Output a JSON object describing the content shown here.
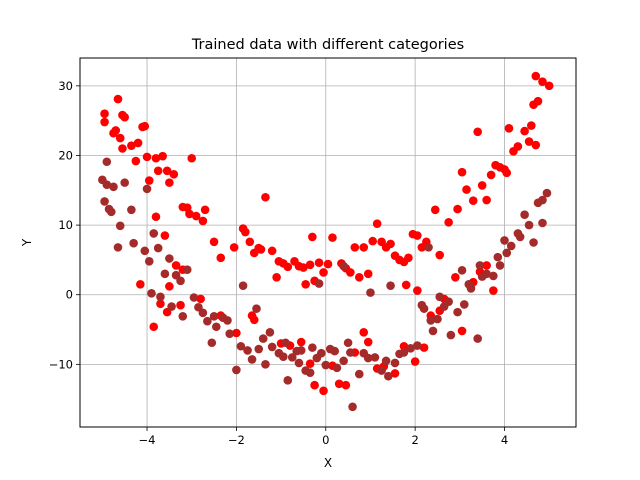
{
  "chart_data": {
    "type": "scatter",
    "title": "Trained data with different categories",
    "xlabel": "X",
    "ylabel": "Y",
    "xlim": [
      -5.5,
      5.6
    ],
    "ylim": [
      -19,
      34
    ],
    "x_ticks": [
      -4,
      -2,
      0,
      2,
      4
    ],
    "y_ticks": [
      -10,
      0,
      10,
      20,
      30
    ],
    "x_tick_labels": [
      "−4",
      "−2",
      "0",
      "2",
      "4"
    ],
    "y_tick_labels": [
      "−10",
      "0",
      "10",
      "20",
      "30"
    ],
    "grid": true,
    "series": [
      {
        "color": "#ff0000",
        "points": [
          [
            -4.95,
            26.0
          ],
          [
            -4.95,
            24.8
          ],
          [
            -4.75,
            23.2
          ],
          [
            -4.7,
            23.6
          ],
          [
            -4.65,
            28.1
          ],
          [
            -4.55,
            25.8
          ],
          [
            -4.5,
            25.5
          ],
          [
            -4.6,
            22.5
          ],
          [
            -4.55,
            21.0
          ],
          [
            -4.35,
            21.4
          ],
          [
            -4.2,
            21.8
          ],
          [
            -4.25,
            19.2
          ],
          [
            -4.1,
            24.1
          ],
          [
            -4.05,
            24.2
          ],
          [
            -4.0,
            19.8
          ],
          [
            -3.95,
            16.4
          ],
          [
            -3.8,
            19.6
          ],
          [
            -3.75,
            17.8
          ],
          [
            -3.65,
            19.9
          ],
          [
            -3.55,
            17.8
          ],
          [
            -3.5,
            16.1
          ],
          [
            -3.4,
            17.3
          ],
          [
            -3.2,
            12.6
          ],
          [
            -3.1,
            12.5
          ],
          [
            -3.0,
            19.6
          ],
          [
            -3.05,
            11.6
          ],
          [
            -2.9,
            11.3
          ],
          [
            -2.75,
            10.6
          ],
          [
            -2.7,
            12.2
          ],
          [
            -2.5,
            7.6
          ],
          [
            -2.35,
            5.3
          ],
          [
            -2.05,
            6.8
          ],
          [
            -1.85,
            9.5
          ],
          [
            -1.8,
            9.0
          ],
          [
            -1.7,
            7.6
          ],
          [
            -1.6,
            6.0
          ],
          [
            -1.5,
            6.7
          ],
          [
            -1.45,
            6.5
          ],
          [
            -1.35,
            14.0
          ],
          [
            -1.2,
            6.3
          ],
          [
            -1.05,
            4.8
          ],
          [
            -0.95,
            4.5
          ],
          [
            -0.85,
            4.0
          ],
          [
            -0.7,
            4.8
          ],
          [
            -0.6,
            4.1
          ],
          [
            -0.5,
            3.9
          ],
          [
            -0.35,
            4.3
          ],
          [
            -0.25,
            2.0
          ],
          [
            -0.15,
            4.6
          ],
          [
            -0.05,
            3.2
          ],
          [
            0.05,
            4.4
          ],
          [
            -0.3,
            8.3
          ],
          [
            0.15,
            8.2
          ],
          [
            0.35,
            4.5
          ],
          [
            0.45,
            3.8
          ],
          [
            0.55,
            3.2
          ],
          [
            0.65,
            6.8
          ],
          [
            0.75,
            2.5
          ],
          [
            0.85,
            6.8
          ],
          [
            0.95,
            3.0
          ],
          [
            1.05,
            7.7
          ],
          [
            1.15,
            10.2
          ],
          [
            1.25,
            7.6
          ],
          [
            1.35,
            6.8
          ],
          [
            1.45,
            7.3
          ],
          [
            1.55,
            5.6
          ],
          [
            1.65,
            5.0
          ],
          [
            1.75,
            4.7
          ],
          [
            1.85,
            5.3
          ],
          [
            1.95,
            8.7
          ],
          [
            2.05,
            8.5
          ],
          [
            2.15,
            6.8
          ],
          [
            2.25,
            7.6
          ],
          [
            2.45,
            12.2
          ],
          [
            2.55,
            5.7
          ],
          [
            2.75,
            10.4
          ],
          [
            2.95,
            12.3
          ],
          [
            3.05,
            17.6
          ],
          [
            3.15,
            15.1
          ],
          [
            3.3,
            13.5
          ],
          [
            3.4,
            23.4
          ],
          [
            3.5,
            15.7
          ],
          [
            3.6,
            13.6
          ],
          [
            3.7,
            17.2
          ],
          [
            3.8,
            18.6
          ],
          [
            3.9,
            18.3
          ],
          [
            4.0,
            18.0
          ],
          [
            4.05,
            17.5
          ],
          [
            4.1,
            23.9
          ],
          [
            4.2,
            20.6
          ],
          [
            4.3,
            21.3
          ],
          [
            4.45,
            23.5
          ],
          [
            4.55,
            22.0
          ],
          [
            4.6,
            24.3
          ],
          [
            4.65,
            27.3
          ],
          [
            4.7,
            31.4
          ],
          [
            4.75,
            27.8
          ],
          [
            4.85,
            30.6
          ],
          [
            5.0,
            30.0
          ],
          [
            4.7,
            21.5
          ],
          [
            -3.8,
            11.2
          ],
          [
            -3.6,
            8.5
          ],
          [
            -3.35,
            4.2
          ],
          [
            -3.2,
            3.6
          ],
          [
            -3.5,
            1.2
          ],
          [
            -3.7,
            -1.3
          ],
          [
            -3.55,
            -2.5
          ],
          [
            -3.25,
            -1.5
          ],
          [
            -3.85,
            -4.6
          ],
          [
            -2.8,
            -0.6
          ],
          [
            -2.35,
            -3.0
          ],
          [
            -2.0,
            -5.5
          ],
          [
            -1.6,
            -3.6
          ],
          [
            -1.0,
            -7.0
          ],
          [
            -0.8,
            -7.3
          ],
          [
            -0.55,
            -6.8
          ],
          [
            -0.35,
            -9.9
          ],
          [
            -0.25,
            -13.0
          ],
          [
            -0.05,
            -13.8
          ],
          [
            0.15,
            -10.2
          ],
          [
            0.3,
            -12.8
          ],
          [
            0.45,
            -13.0
          ],
          [
            0.65,
            -8.3
          ],
          [
            0.85,
            -5.4
          ],
          [
            0.95,
            -6.8
          ],
          [
            1.15,
            -10.6
          ],
          [
            1.3,
            -10.3
          ],
          [
            1.55,
            -11.3
          ],
          [
            1.75,
            -7.4
          ],
          [
            2.0,
            -9.6
          ],
          [
            2.2,
            -7.6
          ],
          [
            2.35,
            -3.0
          ],
          [
            2.55,
            -2.3
          ],
          [
            2.65,
            -0.6
          ],
          [
            2.9,
            2.5
          ],
          [
            3.05,
            -5.2
          ],
          [
            3.3,
            1.8
          ],
          [
            3.45,
            3.3
          ],
          [
            3.6,
            4.2
          ],
          [
            3.75,
            0.6
          ],
          [
            -4.15,
            1.5
          ],
          [
            -1.65,
            -3.0
          ],
          [
            -1.1,
            2.5
          ],
          [
            -0.45,
            1.5
          ],
          [
            1.8,
            1.4
          ],
          [
            2.05,
            0.6
          ]
        ]
      },
      {
        "color": "#a52a2a",
        "points": [
          [
            -5.0,
            16.5
          ],
          [
            -4.9,
            19.1
          ],
          [
            -4.9,
            15.8
          ],
          [
            -4.95,
            13.4
          ],
          [
            -4.85,
            12.3
          ],
          [
            -4.8,
            11.9
          ],
          [
            -4.75,
            15.5
          ],
          [
            -4.6,
            9.9
          ],
          [
            -4.65,
            6.8
          ],
          [
            -4.5,
            16.1
          ],
          [
            -4.35,
            12.2
          ],
          [
            -4.05,
            6.3
          ],
          [
            -4.0,
            15.2
          ],
          [
            -3.9,
            0.2
          ],
          [
            -3.75,
            6.7
          ],
          [
            -3.85,
            8.8
          ],
          [
            -3.6,
            3.0
          ],
          [
            -3.5,
            5.2
          ],
          [
            -3.35,
            2.8
          ],
          [
            -3.25,
            2.0
          ],
          [
            -3.1,
            3.6
          ],
          [
            -2.95,
            -0.4
          ],
          [
            -2.85,
            -1.8
          ],
          [
            -2.75,
            -2.6
          ],
          [
            -2.65,
            -3.8
          ],
          [
            -2.5,
            -3.1
          ],
          [
            -2.45,
            -4.6
          ],
          [
            -2.3,
            -3.3
          ],
          [
            -2.15,
            -5.6
          ],
          [
            -2.0,
            -10.8
          ],
          [
            -1.9,
            -7.4
          ],
          [
            -1.75,
            -8.0
          ],
          [
            -1.65,
            -9.3
          ],
          [
            -1.5,
            -7.8
          ],
          [
            -1.35,
            -10.0
          ],
          [
            -1.2,
            -7.5
          ],
          [
            -1.05,
            -8.4
          ],
          [
            -0.95,
            -8.9
          ],
          [
            -0.85,
            -12.3
          ],
          [
            -0.75,
            -9.0
          ],
          [
            -0.65,
            -8.1
          ],
          [
            -0.55,
            -8.0
          ],
          [
            -0.45,
            -10.9
          ],
          [
            -0.3,
            -7.6
          ],
          [
            -0.2,
            -9.1
          ],
          [
            -0.1,
            -8.4
          ],
          [
            0.0,
            -10.1
          ],
          [
            0.1,
            -7.8
          ],
          [
            0.25,
            -10.5
          ],
          [
            0.4,
            -9.5
          ],
          [
            0.55,
            -8.3
          ],
          [
            0.6,
            -16.1
          ],
          [
            0.75,
            -11.4
          ],
          [
            0.95,
            -9.1
          ],
          [
            1.1,
            -9.0
          ],
          [
            1.25,
            -10.9
          ],
          [
            1.4,
            -11.7
          ],
          [
            1.55,
            -9.8
          ],
          [
            1.75,
            -8.3
          ],
          [
            1.9,
            -7.7
          ],
          [
            2.05,
            -7.3
          ],
          [
            2.2,
            -2.0
          ],
          [
            2.35,
            -3.7
          ],
          [
            2.5,
            -3.5
          ],
          [
            2.65,
            -1.7
          ],
          [
            2.8,
            -5.8
          ],
          [
            2.95,
            -2.5
          ],
          [
            3.1,
            -1.4
          ],
          [
            3.25,
            0.9
          ],
          [
            3.4,
            -6.3
          ],
          [
            3.5,
            2.6
          ],
          [
            3.6,
            3.0
          ],
          [
            3.75,
            2.7
          ],
          [
            3.9,
            4.2
          ],
          [
            4.05,
            6.0
          ],
          [
            4.15,
            7.0
          ],
          [
            4.3,
            8.8
          ],
          [
            4.45,
            11.5
          ],
          [
            4.55,
            10.0
          ],
          [
            4.65,
            7.5
          ],
          [
            4.75,
            13.2
          ],
          [
            4.85,
            10.3
          ],
          [
            4.95,
            14.6
          ],
          [
            4.85,
            13.6
          ],
          [
            4.0,
            7.8
          ],
          [
            3.85,
            5.4
          ],
          [
            3.45,
            4.2
          ],
          [
            3.05,
            3.5
          ],
          [
            2.75,
            -1.0
          ],
          [
            2.55,
            -0.3
          ],
          [
            2.4,
            -5.2
          ],
          [
            -2.2,
            -3.7
          ],
          [
            -1.85,
            1.3
          ],
          [
            -1.55,
            -2.0
          ],
          [
            -1.4,
            -6.3
          ],
          [
            -0.9,
            -6.9
          ],
          [
            -0.6,
            -9.8
          ],
          [
            -0.35,
            -11.2
          ],
          [
            0.2,
            -8.1
          ],
          [
            0.5,
            -6.9
          ],
          [
            0.85,
            -8.4
          ],
          [
            1.35,
            -9.5
          ],
          [
            1.65,
            -8.5
          ],
          [
            -3.2,
            -3.1
          ],
          [
            -3.45,
            -1.7
          ],
          [
            -3.7,
            -0.3
          ],
          [
            -2.55,
            -6.9
          ],
          [
            -1.25,
            -5.4
          ],
          [
            -0.15,
            1.6
          ],
          [
            0.4,
            4.1
          ],
          [
            1.0,
            0.3
          ],
          [
            1.45,
            1.3
          ],
          [
            2.15,
            -1.5
          ],
          [
            2.3,
            6.8
          ],
          [
            3.2,
            1.5
          ],
          [
            4.35,
            8.3
          ],
          [
            -4.3,
            7.4
          ],
          [
            -3.95,
            4.8
          ]
        ]
      }
    ]
  }
}
